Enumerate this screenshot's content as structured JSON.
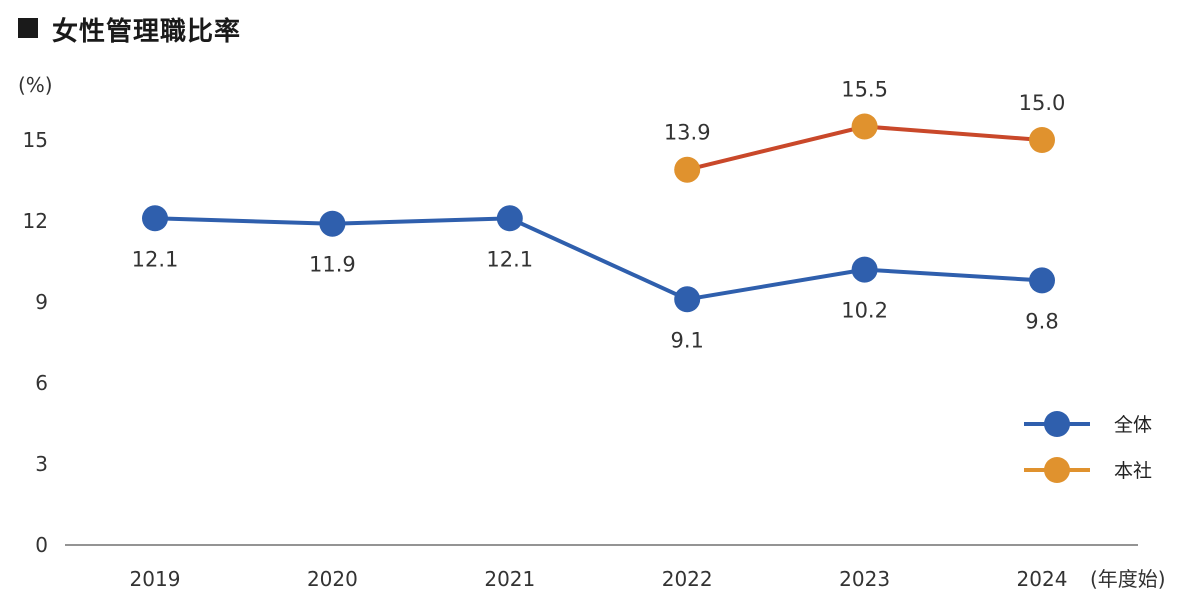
{
  "chart_data": {
    "type": "line",
    "title": "女性管理職比率",
    "ylabel": "(%)",
    "xlabel": "(年度始)",
    "categories": [
      "2019",
      "2020",
      "2021",
      "2022",
      "2023",
      "2024"
    ],
    "yticks": [
      "0",
      "3",
      "6",
      "9",
      "12",
      "15"
    ],
    "ylim": [
      0,
      18
    ],
    "series": [
      {
        "name": "全体",
        "color": "#2f5fad",
        "line_color": "#2f5fad",
        "values": [
          12.1,
          11.9,
          12.1,
          9.1,
          10.2,
          9.8
        ],
        "labels": [
          "12.1",
          "11.9",
          "12.1",
          "9.1",
          "10.2",
          "9.8"
        ],
        "label_position": "below"
      },
      {
        "name": "本社",
        "color": "#e0922e",
        "line_color": "#c9482a",
        "values": [
          null,
          null,
          null,
          13.9,
          15.5,
          15.0
        ],
        "labels": [
          "",
          "",
          "",
          "13.9",
          "15.5",
          "15.0"
        ],
        "label_position": "above"
      }
    ],
    "legend_position": "right",
    "grid": false
  }
}
